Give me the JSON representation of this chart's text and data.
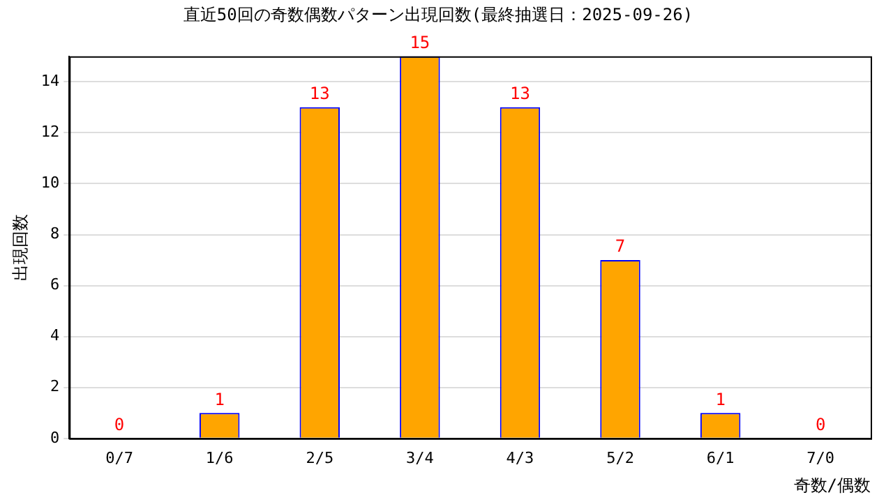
{
  "chart_data": {
    "type": "bar",
    "title": "直近50回の奇数偶数パターン出現回数(最終抽選日：2025-09-26)",
    "xlabel": "奇数/偶数",
    "ylabel": "出現回数",
    "categories": [
      "0/7",
      "1/6",
      "2/5",
      "3/4",
      "4/3",
      "5/2",
      "6/1",
      "7/0"
    ],
    "values": [
      0,
      1,
      13,
      15,
      13,
      7,
      1,
      0
    ],
    "color": "#ffa500",
    "ylim": [
      0,
      15
    ],
    "yticks": [
      0,
      2,
      4,
      6,
      8,
      10,
      12,
      14
    ],
    "grid": "y",
    "data_labels": true,
    "legend": false
  }
}
